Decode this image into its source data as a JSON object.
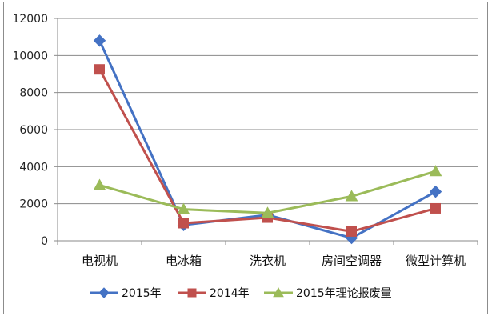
{
  "chart_data": {
    "type": "line",
    "categories": [
      "电视机",
      "电冰箱",
      "洗衣机",
      "房间空调器",
      "微型计算机"
    ],
    "ylim": [
      0,
      12000
    ],
    "yticks": [
      0,
      2000,
      4000,
      6000,
      8000,
      10000,
      12000
    ],
    "grid": true,
    "legend_position": "bottom",
    "series": [
      {
        "name": "2015年",
        "values": [
          10800,
          850,
          1400,
          150,
          2650
        ],
        "color": "#4472C4",
        "marker": "diamond"
      },
      {
        "name": "2014年",
        "values": [
          9250,
          950,
          1250,
          500,
          1750
        ],
        "color": "#C0504D",
        "marker": "square"
      },
      {
        "name": "2015年理论报废量",
        "values": [
          3000,
          1700,
          1500,
          2400,
          3750
        ],
        "color": "#9BBB59",
        "marker": "triangle"
      }
    ]
  }
}
